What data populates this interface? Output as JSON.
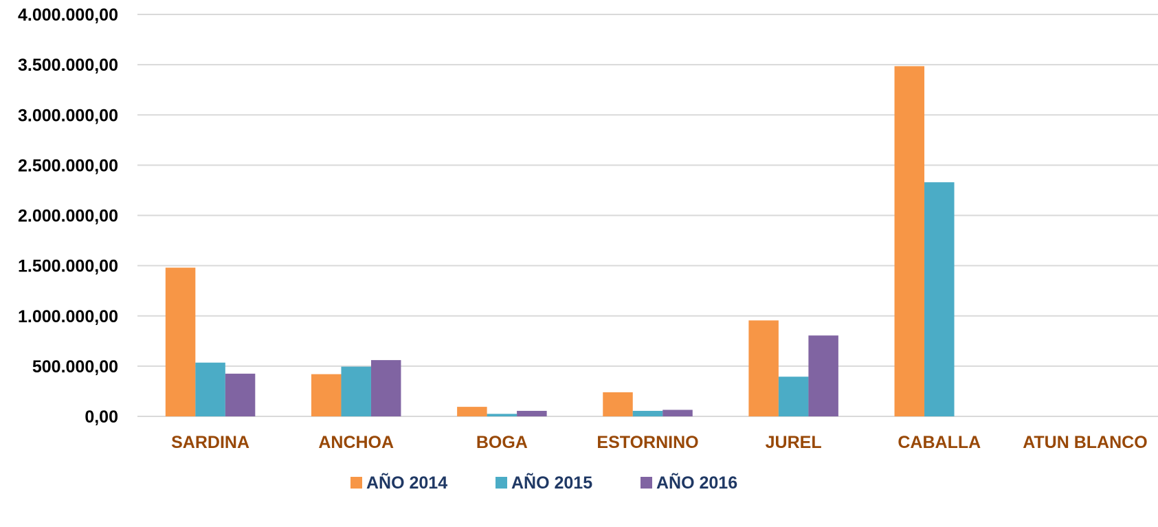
{
  "chart_data": {
    "type": "bar",
    "categories": [
      "SARDINA",
      "ANCHOA",
      "BOGA",
      "ESTORNINO",
      "JUREL",
      "CABALLA",
      "ATUN BLANCO"
    ],
    "series": [
      {
        "name": "AÑO 2014",
        "color": "#F79646",
        "values": [
          1480000,
          420000,
          95000,
          240000,
          955000,
          3485000,
          0
        ]
      },
      {
        "name": "AÑO 2015",
        "color": "#4BACC6",
        "values": [
          535000,
          495000,
          25000,
          55000,
          395000,
          2330000,
          0
        ]
      },
      {
        "name": "AÑO 2016",
        "color": "#8064A2",
        "values": [
          425000,
          560000,
          55000,
          65000,
          805000,
          0,
          0
        ]
      }
    ],
    "ylim": [
      0,
      4000000
    ],
    "yticks": [
      0,
      500000,
      1000000,
      1500000,
      2000000,
      2500000,
      3000000,
      3500000,
      4000000
    ],
    "ytick_labels": [
      "0,00",
      "500.000,00",
      "1.000.000,00",
      "1.500.000,00",
      "2.000.000,00",
      "2.500.000,00",
      "3.000.000,00",
      "3.500.000,00",
      "4.000.000,00"
    ],
    "grid": true,
    "legend_position": "bottom",
    "category_label_color": "#984807",
    "legend_label_color": "#1F3864",
    "gridline_color": "#D9D9D9"
  }
}
